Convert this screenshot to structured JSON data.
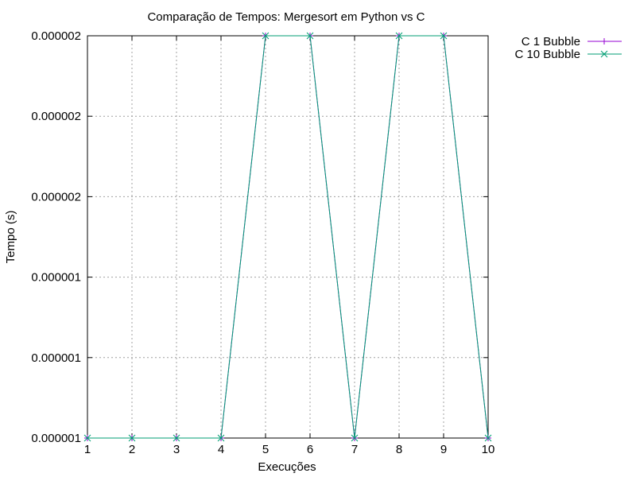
{
  "chart_data": {
    "type": "line",
    "title": "Comparação de Tempos: Mergesort em Python vs C",
    "xlabel": "Execuções",
    "ylabel": "Tempo (s)",
    "x": [
      1,
      2,
      3,
      4,
      5,
      6,
      7,
      8,
      9,
      10
    ],
    "xlim": [
      1,
      10
    ],
    "ylim": [
      1e-06,
      2e-06
    ],
    "y_tick_labels": [
      "0.000001",
      "0.000001",
      "0.000001",
      "0.000002",
      "0.000002",
      "0.000002"
    ],
    "grid": true,
    "legend_position": "outside-top-right",
    "series": [
      {
        "name": "C 1 Bubble",
        "color": "#9400d3",
        "marker": "plus",
        "values": [
          1e-06,
          1e-06,
          1e-06,
          1e-06,
          2e-06,
          2e-06,
          1e-06,
          2e-06,
          2e-06,
          1e-06
        ]
      },
      {
        "name": "C 10 Bubble",
        "color": "#009e73",
        "marker": "cross",
        "values": [
          1e-06,
          1e-06,
          1e-06,
          1e-06,
          2e-06,
          2e-06,
          1e-06,
          2e-06,
          2e-06,
          1e-06
        ]
      }
    ]
  }
}
